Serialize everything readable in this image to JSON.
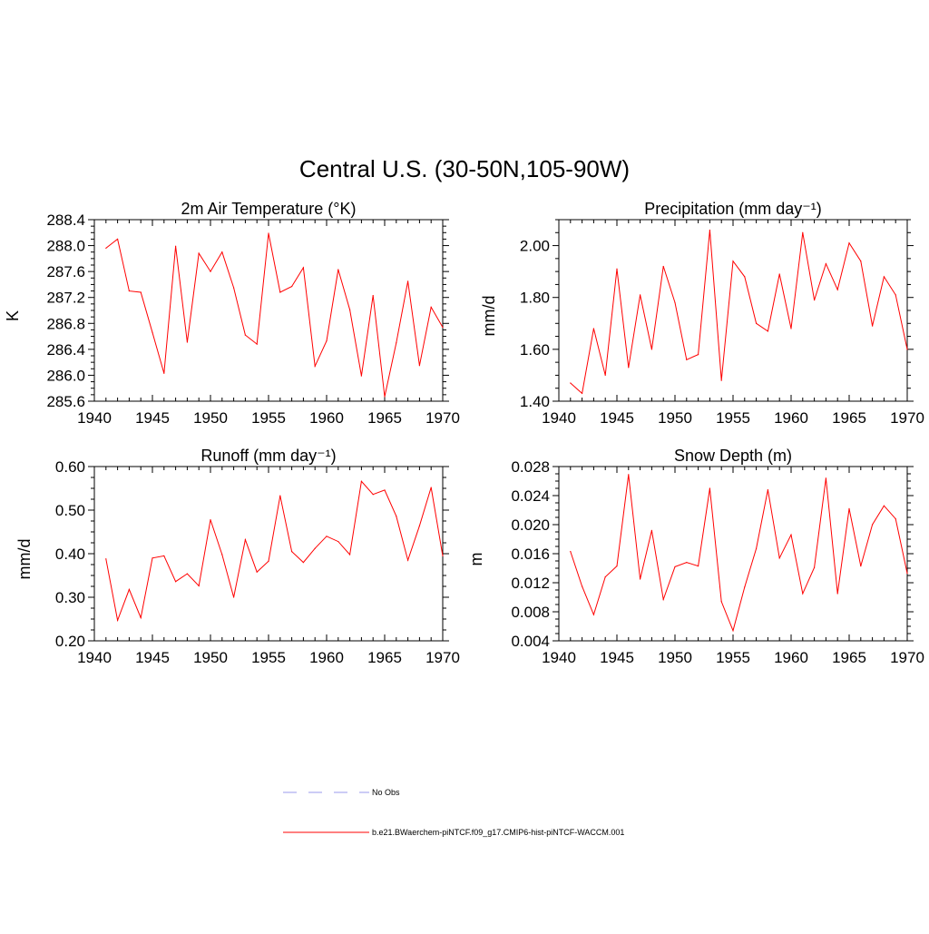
{
  "figure": {
    "title": "Central U.S. (30-50N,105-90W)"
  },
  "legend": {
    "placement": "bottom-center",
    "entries": [
      {
        "label": "No Obs",
        "color": "#9999ee",
        "style": "dashed"
      },
      {
        "label": "b.e21.BWaerchem-piNTCF.f09_g17.CMIP6-hist-piNTCF-WACCM.001",
        "color": "#ff0000",
        "style": "solid"
      }
    ]
  },
  "chart_data": [
    {
      "type": "line",
      "title": "2m Air Temperature (°K)",
      "xlabel": "",
      "ylabel": "K",
      "xlim": [
        1940,
        1970
      ],
      "ylim": [
        285.6,
        288.4
      ],
      "xticks": [
        "1940",
        "1945",
        "1950",
        "1955",
        "1960",
        "1965",
        "1970"
      ],
      "yticks": [
        "285.6",
        "286.0",
        "286.4",
        "286.8",
        "287.2",
        "287.6",
        "288.0",
        "288.4"
      ],
      "grid": false,
      "series": [
        {
          "name": "b.e21.BWaerchem-piNTCF.f09_g17.CMIP6-hist-piNTCF-WACCM.001",
          "color": "#ff0000",
          "x": [
            1941,
            1942,
            1943,
            1944,
            1945,
            1946,
            1947,
            1948,
            1949,
            1950,
            1951,
            1952,
            1953,
            1954,
            1955,
            1956,
            1957,
            1958,
            1959,
            1960,
            1961,
            1962,
            1963,
            1964,
            1965,
            1966,
            1967,
            1968,
            1969,
            1970
          ],
          "values": [
            287.96,
            288.1,
            287.3,
            287.28,
            286.66,
            286.03,
            287.99,
            286.51,
            287.88,
            287.6,
            287.9,
            287.35,
            286.62,
            286.48,
            288.19,
            287.28,
            287.37,
            287.66,
            286.14,
            286.53,
            287.63,
            287.01,
            285.99,
            287.23,
            285.67,
            286.5,
            287.45,
            286.15,
            287.05,
            286.74
          ]
        }
      ]
    },
    {
      "type": "line",
      "title": "Precipitation (mm day⁻¹)",
      "xlabel": "",
      "ylabel": "mm/d",
      "xlim": [
        1940,
        1970
      ],
      "ylim": [
        1.4,
        2.1
      ],
      "xticks": [
        "1940",
        "1945",
        "1950",
        "1955",
        "1960",
        "1965",
        "1970"
      ],
      "yticks": [
        "1.40",
        "1.60",
        "1.80",
        "2.00"
      ],
      "grid": false,
      "series": [
        {
          "name": "b.e21.BWaerchem-piNTCF.f09_g17.CMIP6-hist-piNTCF-WACCM.001",
          "color": "#ff0000",
          "x": [
            1941,
            1942,
            1943,
            1944,
            1945,
            1946,
            1947,
            1948,
            1949,
            1950,
            1951,
            1952,
            1953,
            1954,
            1955,
            1956,
            1957,
            1958,
            1959,
            1960,
            1961,
            1962,
            1963,
            1964,
            1965,
            1966,
            1967,
            1968,
            1969,
            1970
          ],
          "values": [
            1.47,
            1.43,
            1.68,
            1.5,
            1.91,
            1.53,
            1.81,
            1.6,
            1.92,
            1.78,
            1.56,
            1.58,
            2.06,
            1.48,
            1.94,
            1.88,
            1.7,
            1.67,
            1.89,
            1.68,
            2.05,
            1.79,
            1.93,
            1.83,
            2.01,
            1.94,
            1.69,
            1.88,
            1.81,
            1.6
          ]
        }
      ]
    },
    {
      "type": "line",
      "title": "Runoff (mm day⁻¹)",
      "xlabel": "",
      "ylabel": "mm/d",
      "xlim": [
        1940,
        1970
      ],
      "ylim": [
        0.2,
        0.6
      ],
      "xticks": [
        "1940",
        "1945",
        "1950",
        "1955",
        "1960",
        "1965",
        "1970"
      ],
      "yticks": [
        "0.20",
        "0.30",
        "0.40",
        "0.50",
        "0.60"
      ],
      "grid": false,
      "series": [
        {
          "name": "b.e21.BWaerchem-piNTCF.f09_g17.CMIP6-hist-piNTCF-WACCM.001",
          "color": "#ff0000",
          "x": [
            1941,
            1942,
            1943,
            1944,
            1945,
            1946,
            1947,
            1948,
            1949,
            1950,
            1951,
            1952,
            1953,
            1954,
            1955,
            1956,
            1957,
            1958,
            1959,
            1960,
            1961,
            1962,
            1963,
            1964,
            1965,
            1966,
            1967,
            1968,
            1969,
            1970
          ],
          "values": [
            0.388,
            0.247,
            0.318,
            0.253,
            0.39,
            0.395,
            0.336,
            0.354,
            0.326,
            0.478,
            0.398,
            0.3,
            0.432,
            0.358,
            0.383,
            0.533,
            0.405,
            0.38,
            0.412,
            0.44,
            0.428,
            0.398,
            0.566,
            0.536,
            0.546,
            0.486,
            0.385,
            0.464,
            0.552,
            0.395
          ]
        }
      ]
    },
    {
      "type": "line",
      "title": "Snow Depth (m)",
      "xlabel": "",
      "ylabel": "m",
      "xlim": [
        1940,
        1970
      ],
      "ylim": [
        0.004,
        0.028
      ],
      "xticks": [
        "1940",
        "1945",
        "1950",
        "1955",
        "1960",
        "1965",
        "1970"
      ],
      "yticks": [
        "0.004",
        "0.008",
        "0.012",
        "0.016",
        "0.020",
        "0.024",
        "0.028"
      ],
      "grid": false,
      "series": [
        {
          "name": "b.e21.BWaerchem-piNTCF.f09_g17.CMIP6-hist-piNTCF-WACCM.001",
          "color": "#ff0000",
          "x": [
            1941,
            1942,
            1943,
            1944,
            1945,
            1946,
            1947,
            1948,
            1949,
            1950,
            1951,
            1952,
            1953,
            1954,
            1955,
            1956,
            1957,
            1958,
            1959,
            1960,
            1961,
            1962,
            1963,
            1964,
            1965,
            1966,
            1967,
            1968,
            1969,
            1970
          ],
          "values": [
            0.0163,
            0.0115,
            0.0076,
            0.0128,
            0.0143,
            0.0269,
            0.0125,
            0.0192,
            0.0097,
            0.0142,
            0.0148,
            0.0143,
            0.025,
            0.0094,
            0.0054,
            0.0114,
            0.0167,
            0.0248,
            0.0154,
            0.0186,
            0.0105,
            0.0141,
            0.0264,
            0.0105,
            0.0222,
            0.0143,
            0.02,
            0.0226,
            0.0208,
            0.0133
          ]
        }
      ]
    }
  ]
}
